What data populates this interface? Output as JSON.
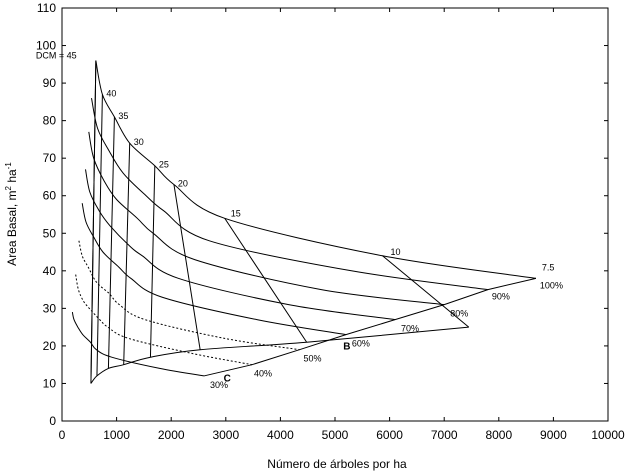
{
  "chart_data": {
    "type": "line",
    "xlabel": "Número de árboles por ha",
    "ylabel": "Area Basal, m",
    "ylabel_sup1": "2",
    "ylabel_mid": " ha",
    "ylabel_sup2": "-1",
    "xlim": [
      0,
      10000
    ],
    "ylim": [
      0,
      110
    ],
    "xticks": [
      "0",
      "1000",
      "2000",
      "3000",
      "4000",
      "5000",
      "6000",
      "7000",
      "8000",
      "9000",
      "10000"
    ],
    "yticks": [
      "0",
      "10",
      "20",
      "30",
      "40",
      "50",
      "60",
      "70",
      "80",
      "90",
      "100",
      "110"
    ],
    "grid": false,
    "dcm_lines": [
      {
        "label": "DCM = 45",
        "points": [
          [
            530,
            10
          ],
          [
            620,
            96
          ]
        ]
      },
      {
        "label": "40",
        "points": [
          [
            640,
            12
          ],
          [
            740,
            87
          ]
        ]
      },
      {
        "label": "35",
        "points": [
          [
            850,
            14
          ],
          [
            960,
            81
          ]
        ]
      },
      {
        "label": "30",
        "points": [
          [
            1130,
            15
          ],
          [
            1240,
            74
          ]
        ]
      },
      {
        "label": "25",
        "points": [
          [
            1620,
            17
          ],
          [
            1700,
            68
          ]
        ]
      },
      {
        "label": "20",
        "points": [
          [
            2530,
            19
          ],
          [
            2050,
            63
          ]
        ]
      },
      {
        "label": "15",
        "points": [
          [
            4480,
            21
          ],
          [
            2980,
            54
          ]
        ]
      },
      {
        "label": "10",
        "points": [
          [
            7450,
            25
          ],
          [
            5870,
            44
          ]
        ]
      },
      {
        "label": "7.5",
        "points": [
          [
            8680,
            38
          ],
          [
            8680,
            38
          ]
        ]
      }
    ],
    "density_curves": [
      {
        "label": "100%",
        "style": "solid",
        "points": [
          [
            620,
            96
          ],
          [
            740,
            87
          ],
          [
            960,
            81
          ],
          [
            1240,
            74
          ],
          [
            1700,
            68
          ],
          [
            2050,
            63
          ],
          [
            2980,
            54
          ],
          [
            5870,
            44
          ],
          [
            8680,
            38
          ]
        ]
      },
      {
        "label": "90%",
        "style": "solid",
        "points": [
          [
            540,
            86
          ],
          [
            650,
            78
          ],
          [
            860,
            72
          ],
          [
            1120,
            66
          ],
          [
            1540,
            60
          ],
          [
            1860,
            56
          ],
          [
            2700,
            48
          ],
          [
            5300,
            40
          ],
          [
            7800,
            35
          ]
        ]
      },
      {
        "label": "80%",
        "style": "solid",
        "points": [
          [
            490,
            77
          ],
          [
            580,
            70
          ],
          [
            770,
            64
          ],
          [
            1000,
            59
          ],
          [
            1380,
            54
          ],
          [
            1670,
            50
          ],
          [
            2430,
            43
          ],
          [
            4750,
            35
          ],
          [
            7000,
            31
          ]
        ]
      },
      {
        "label": "70%",
        "style": "solid",
        "points": [
          [
            430,
            67
          ],
          [
            510,
            61
          ],
          [
            680,
            56
          ],
          [
            880,
            52
          ],
          [
            1210,
            47
          ],
          [
            1470,
            44
          ],
          [
            2130,
            38
          ],
          [
            4150,
            31
          ],
          [
            6100,
            27
          ]
        ]
      },
      {
        "label": "60%",
        "style": "solid",
        "points": [
          [
            370,
            58
          ],
          [
            440,
            53
          ],
          [
            580,
            49
          ],
          [
            750,
            45
          ],
          [
            1040,
            41
          ],
          [
            1260,
            38
          ],
          [
            1830,
            33
          ],
          [
            3570,
            27
          ],
          [
            5200,
            23
          ]
        ]
      },
      {
        "label": "50%",
        "style": "dotted",
        "points": [
          [
            310,
            48
          ],
          [
            370,
            44
          ],
          [
            480,
            41
          ],
          [
            630,
            37
          ],
          [
            860,
            34
          ],
          [
            1050,
            31
          ],
          [
            1520,
            27
          ],
          [
            2980,
            22
          ],
          [
            4350,
            19
          ]
        ]
      },
      {
        "label": "40%",
        "style": "dotted",
        "points": [
          [
            250,
            39
          ],
          [
            300,
            35
          ],
          [
            390,
            32
          ],
          [
            500,
            30
          ],
          [
            690,
            27
          ],
          [
            840,
            25
          ],
          [
            1220,
            22
          ],
          [
            2380,
            18
          ],
          [
            3480,
            15
          ]
        ]
      },
      {
        "label": "30%",
        "style": "solid",
        "points": [
          [
            190,
            29
          ],
          [
            220,
            27
          ],
          [
            290,
            25
          ],
          [
            380,
            23
          ],
          [
            520,
            21
          ],
          [
            630,
            19
          ],
          [
            910,
            17
          ],
          [
            1790,
            14
          ],
          [
            2600,
            12
          ]
        ]
      }
    ],
    "curve_labels": [
      "100%",
      "90%",
      "80%",
      "70%",
      "60%",
      "50%",
      "40%",
      "30%"
    ],
    "zone_labels": [
      "B",
      "C"
    ]
  }
}
